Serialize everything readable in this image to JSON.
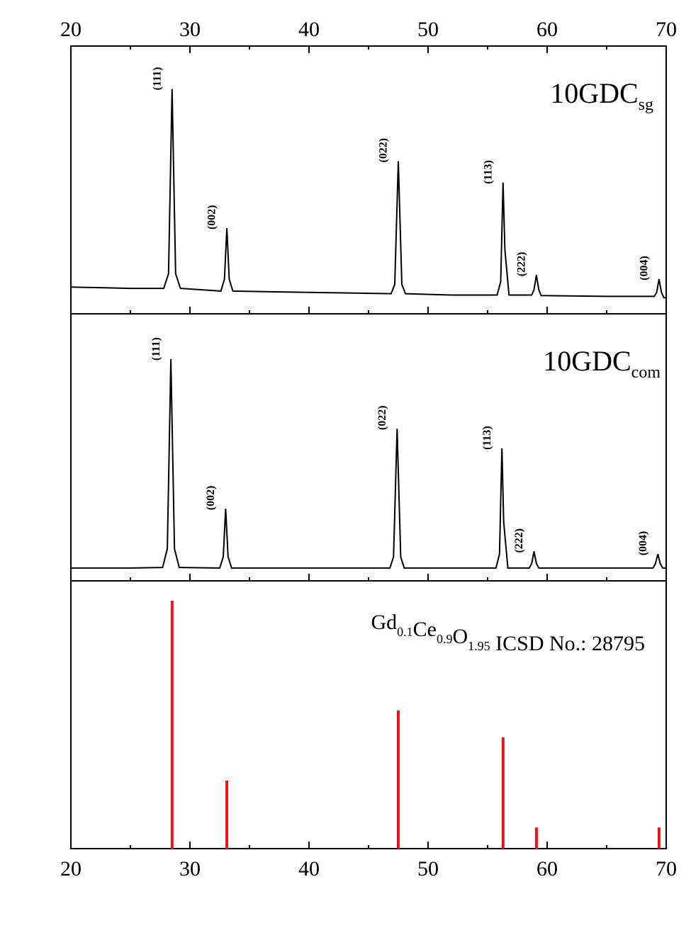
{
  "chart_data": [
    {
      "type": "line",
      "color": "#000000",
      "title_parts": [
        [
          "10GDC",
          "sg"
        ]
      ],
      "x": [
        20,
        25,
        27.8,
        28.2,
        28.5,
        28.8,
        29.2,
        32.6,
        32.9,
        33.1,
        33.3,
        33.6,
        40,
        46.9,
        47.2,
        47.5,
        47.8,
        48.1,
        52,
        55.8,
        56.1,
        56.3,
        56.45,
        56.8,
        58.7,
        58.9,
        59.1,
        59.3,
        59.5,
        65,
        69.0,
        69.2,
        69.4,
        69.6,
        69.8,
        70
      ],
      "values": [
        10,
        9.5,
        9.5,
        15,
        84,
        15,
        9.5,
        8.5,
        13,
        32,
        13,
        8.5,
        8,
        7.5,
        11,
        57,
        11,
        7.5,
        7,
        7,
        12,
        49,
        24,
        7,
        7,
        9,
        14.5,
        9,
        6.8,
        6.5,
        6.5,
        8,
        13,
        8,
        6,
        6
      ],
      "peak_labels": [
        "(111)",
        "(002)",
        "(022)",
        "(113)",
        "(222)",
        "(004)"
      ],
      "xlim": [
        20,
        70
      ],
      "ylim": [
        0,
        100
      ],
      "xticks": [
        20,
        30,
        40,
        50,
        60,
        70
      ],
      "xminor": [
        25,
        35,
        45,
        55,
        65
      ]
    },
    {
      "type": "line",
      "color": "#000000",
      "title_parts": [
        [
          "10GDC",
          "com"
        ]
      ],
      "x": [
        20,
        25,
        27.7,
        28.1,
        28.4,
        28.7,
        29.1,
        32.5,
        32.8,
        33.0,
        33.2,
        33.5,
        40,
        46.8,
        47.1,
        47.4,
        47.7,
        48.0,
        52,
        55.7,
        56.0,
        56.2,
        56.35,
        56.7,
        58.5,
        58.7,
        58.9,
        59.1,
        59.3,
        65,
        68.9,
        69.1,
        69.3,
        69.5,
        69.7,
        70
      ],
      "values": [
        4.8,
        4.8,
        5,
        12,
        83,
        12,
        5,
        4.8,
        9,
        27,
        9,
        4.8,
        4.8,
        4.8,
        9,
        57,
        9,
        4.8,
        4.8,
        4.8,
        10,
        49.6,
        22,
        4.8,
        4.8,
        6.5,
        11,
        6.5,
        4.8,
        4.8,
        4.8,
        6.5,
        10,
        6.5,
        4.8,
        4.8
      ],
      "peak_labels": [
        "(111)",
        "(002)",
        "(022)",
        "(113)",
        "(222)",
        "(004)"
      ],
      "xlim": [
        20,
        70
      ],
      "ylim": [
        0,
        100
      ]
    },
    {
      "type": "stick",
      "color": "#e8141b",
      "title_parts": [
        [
          "Gd",
          "0.1"
        ],
        [
          "Ce",
          "0.9"
        ],
        [
          "O",
          "1.95"
        ]
      ],
      "title_rest": " ICSD No.: 28795",
      "x": [
        28.5,
        33.1,
        47.5,
        56.3,
        59.1,
        69.4
      ],
      "values": [
        92.6,
        25.4,
        51.6,
        41.5,
        7.9,
        7.9
      ],
      "xlim": [
        20,
        70
      ],
      "ylim": [
        0,
        100
      ],
      "xticks": [
        20,
        30,
        40,
        50,
        60,
        70
      ],
      "xminor": [
        25,
        35,
        45,
        55,
        65
      ]
    }
  ]
}
